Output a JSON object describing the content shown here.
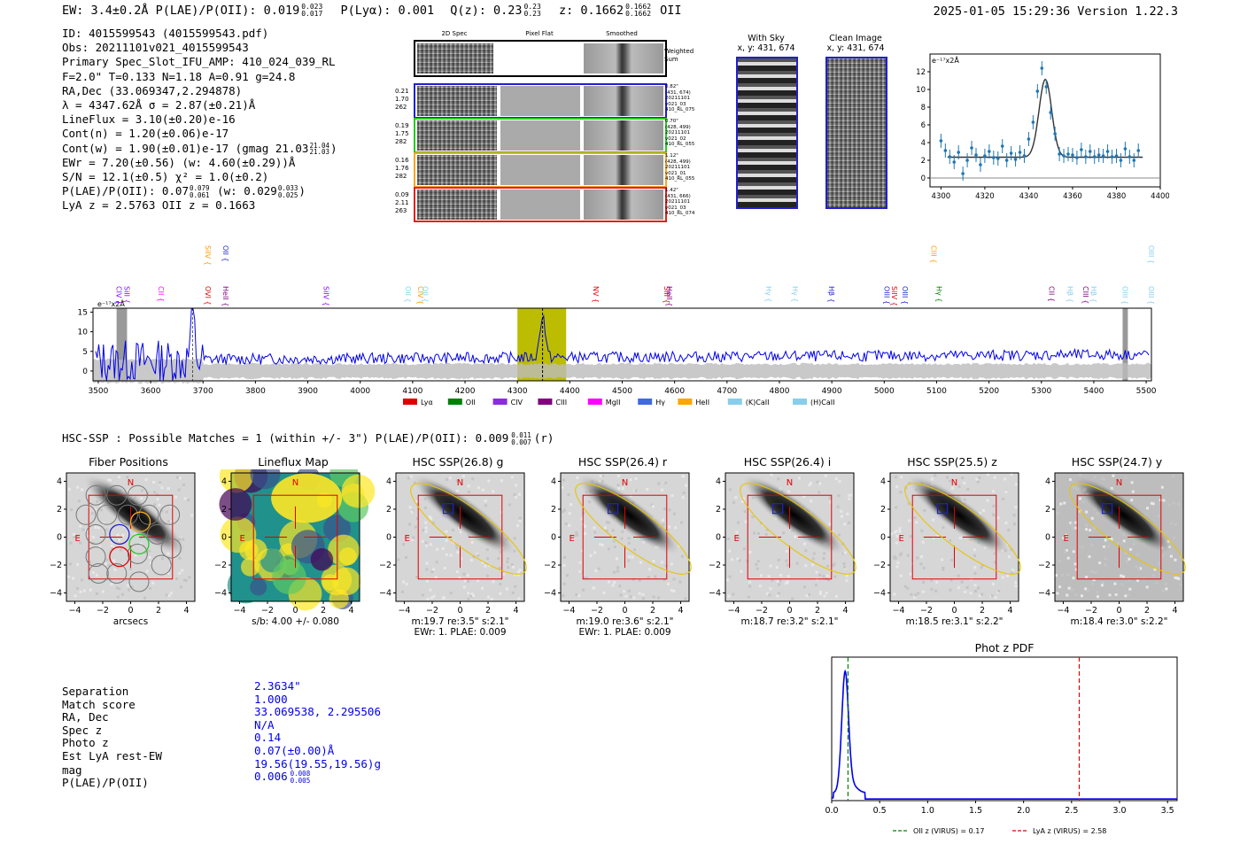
{
  "header": {
    "left": "EW: 3.4±0.2Å  P(LAE)/P(OII): 0.019",
    "plae_sup": "0.023",
    "plae_sub": "0.017",
    "plya": "P(Lyα): 0.001",
    "qz": "Q(z): 0.23",
    "qz_sup": "0.23",
    "qz_sub": "0.23",
    "z": "z: 0.1662",
    "z_sup": "0.1662",
    "z_sub": "0.1662",
    "z_line": "OII",
    "right": "2025-01-05 15:29:36  Version 1.22.3"
  },
  "info": {
    "l1": "ID: 4015599543 (4015599543.pdf)",
    "l2": "Obs: 20211101v021_4015599543",
    "l3": "Primary Spec_Slot_IFU_AMP: 410_024_039_RL",
    "l4": "F=2.0\"  T=0.133  N=1.18  A=0.91  g=24.8",
    "l5": "RA,Dec (33.069347,2.294878)",
    "l6": "λ = 4347.62Å  σ = 2.87(±0.21)Å",
    "l7": "LineFlux = 3.10(±0.20)e-16",
    "l8": "Cont(n) = 1.20(±0.06)e-17",
    "l9": "Cont(w) = 1.90(±0.01)e-17 (gmag 21.03",
    "l9_sup": "21.04",
    "l9_sub": "21.03",
    "l9_end": ")",
    "l10": "EWr = 7.20(±0.56) (w: 4.60(±0.29))Å",
    "l11": "S/N = 12.1(±0.5)  χ² = 1.0(±0.2)",
    "l12": "P(LAE)/P(OII): 0.07",
    "l12_sup": "0.079",
    "l12_sub": "0.061",
    "l12_mid": " (w: 0.029",
    "l12_sup2": "0.033",
    "l12_sub2": "0.025",
    "l12_end": ")",
    "l13": "LyA z = 2.5763  OII z = 0.1663"
  },
  "cutouts": {
    "col1": "2D Spec",
    "col2": "Pixel Flat",
    "col3": "Smoothed",
    "weighted": "Weighted Sum",
    "rows": [
      {
        "l1": "0.21",
        "l2": "1.70",
        "l3": "262",
        "r1": "0.82\"",
        "r2": "(431, 674)",
        "r3": "20211101",
        "r4": "v021_03",
        "r5": "410_RL_075",
        "color": "#1f1fd0"
      },
      {
        "l1": "0.19",
        "l2": "1.75",
        "l3": "282",
        "r1": "0.70\"",
        "r2": "(428, 499)",
        "r3": "20211101",
        "r4": "v021_02",
        "r5": "410_RL_055",
        "color": "#22cc22"
      },
      {
        "l1": "0.16",
        "l2": "1.76",
        "l3": "282",
        "r1": "1.12\"",
        "r2": "(428, 499)",
        "r3": "20211101",
        "r4": "v021_01",
        "r5": "410_RL_055",
        "color": "#f5a623"
      },
      {
        "l1": "0.09",
        "l2": "2.11",
        "l3": "263",
        "r1": "1.42\"",
        "r2": "(431, 666)",
        "r3": "20211101",
        "r4": "v021_03",
        "r5": "410_RL_074",
        "color": "#e0201b"
      }
    ],
    "with_sky": "With Sky",
    "with_sky_xy": "x, y: 431, 674",
    "clean": "Clean Image",
    "clean_xy": "x, y: 431, 674"
  },
  "line_fit": {
    "unit": "e⁻¹⁷x2Å",
    "xlim": [
      4295,
      4400
    ],
    "ylim": [
      -1,
      14
    ],
    "xticks": [
      "4300",
      "4320",
      "4340",
      "4360",
      "4380",
      "4400"
    ],
    "yticks": [
      "0",
      "2",
      "4",
      "6",
      "8",
      "10",
      "12"
    ],
    "points": [
      [
        4300,
        4.2
      ],
      [
        4302,
        3.1
      ],
      [
        4304,
        2.4
      ],
      [
        4306,
        1.8
      ],
      [
        4308,
        2.9
      ],
      [
        4310,
        0.5
      ],
      [
        4312,
        2.0
      ],
      [
        4314,
        3.4
      ],
      [
        4316,
        2.6
      ],
      [
        4318,
        1.5
      ],
      [
        4320,
        2.5
      ],
      [
        4322,
        3.0
      ],
      [
        4324,
        2.3
      ],
      [
        4326,
        2.2
      ],
      [
        4328,
        3.6
      ],
      [
        4330,
        2.0
      ],
      [
        4332,
        2.8
      ],
      [
        4334,
        2.1
      ],
      [
        4336,
        2.9
      ],
      [
        4338,
        2.5
      ],
      [
        4340,
        4.4
      ],
      [
        4342,
        6.3
      ],
      [
        4344,
        9.8
      ],
      [
        4346,
        12.4
      ],
      [
        4348,
        10.3
      ],
      [
        4350,
        7.4
      ],
      [
        4352,
        5.0
      ],
      [
        4354,
        2.7
      ],
      [
        4356,
        2.5
      ],
      [
        4358,
        2.7
      ],
      [
        4360,
        2.6
      ],
      [
        4362,
        2.3
      ],
      [
        4364,
        3.2
      ],
      [
        4366,
        2.4
      ],
      [
        4368,
        3.0
      ],
      [
        4370,
        2.4
      ],
      [
        4372,
        2.6
      ],
      [
        4374,
        2.5
      ],
      [
        4376,
        3.0
      ],
      [
        4378,
        2.4
      ],
      [
        4380,
        2.5
      ],
      [
        4382,
        2.0
      ],
      [
        4384,
        3.3
      ],
      [
        4386,
        2.4
      ],
      [
        4388,
        2.0
      ],
      [
        4390,
        3.1
      ]
    ],
    "fit": {
      "center": 4347.6,
      "sigma": 2.87,
      "amp": 8.8,
      "cont": 2.35
    }
  },
  "spectrum": {
    "unit": "e⁻¹⁷x2Å",
    "xlim": [
      3490,
      5510
    ],
    "ylim": [
      -2.5,
      16
    ],
    "xticks": [
      "3500",
      "3600",
      "3700",
      "3800",
      "3900",
      "4000",
      "4100",
      "4200",
      "4300",
      "4400",
      "4500",
      "4600",
      "4700",
      "4800",
      "4900",
      "5000",
      "5100",
      "5200",
      "5300",
      "5400",
      "5500"
    ],
    "yticks": [
      "0",
      "5",
      "10",
      "15"
    ],
    "highlight": [
      4300,
      4393
    ],
    "line_labels": [
      {
        "w": 3530,
        "t": "CIV",
        "c": "#8b00ff",
        "row": 1
      },
      {
        "w": 3545,
        "t": "SiII",
        "c": "#8b00ff",
        "row": 1
      },
      {
        "w": 3610,
        "t": "CII",
        "c": "#ff00ff",
        "row": 1
      },
      {
        "w": 3700,
        "t": "OVI",
        "c": "#e00000",
        "row": 1
      },
      {
        "w": 3700,
        "t": "SiIV",
        "c": "#ff9900",
        "row": 0
      },
      {
        "w": 3733,
        "t": "OII",
        "c": "#1f1fd0",
        "row": 0
      },
      {
        "w": 3733,
        "t": "HeII",
        "c": "#800080",
        "row": 1
      },
      {
        "w": 3925,
        "t": "SiIV",
        "c": "#8b00ff",
        "row": 1
      },
      {
        "w": 4082,
        "t": "OII",
        "c": "#87ceeb",
        "row": 1
      },
      {
        "w": 4105,
        "t": "CIV",
        "c": "#ff9900",
        "row": 1
      },
      {
        "w": 4115,
        "t": "OII",
        "c": "#87ceeb",
        "row": 1
      },
      {
        "w": 4440,
        "t": "NV",
        "c": "#e00000",
        "row": 1
      },
      {
        "w": 4575,
        "t": "SiII",
        "c": "#e00000",
        "row": 1
      },
      {
        "w": 4580,
        "t": "HeII",
        "c": "#800080",
        "row": 1
      },
      {
        "w": 4770,
        "t": "Hγ",
        "c": "#87ceeb",
        "row": 1
      },
      {
        "w": 4820,
        "t": "Hγ",
        "c": "#87ceeb",
        "row": 1
      },
      {
        "w": 4890,
        "t": "Hβ",
        "c": "#1f1fd0",
        "row": 1
      },
      {
        "w": 4995,
        "t": "OIII",
        "c": "#1f1fd0",
        "row": 1
      },
      {
        "w": 5010,
        "t": "SiIV",
        "c": "#e00000",
        "row": 1
      },
      {
        "w": 5030,
        "t": "OIII",
        "c": "#1f1fd0",
        "row": 1
      },
      {
        "w": 5085,
        "t": "CIII",
        "c": "#ff9900",
        "row": 0
      },
      {
        "w": 5095,
        "t": "Hγ",
        "c": "#008000",
        "row": 1
      },
      {
        "w": 5310,
        "t": "CII",
        "c": "#800080",
        "row": 1
      },
      {
        "w": 5345,
        "t": "Hβ",
        "c": "#87ceeb",
        "row": 1
      },
      {
        "w": 5375,
        "t": "CIII",
        "c": "#800080",
        "row": 1
      },
      {
        "w": 5390,
        "t": "Hβ",
        "c": "#87ceeb",
        "row": 1
      },
      {
        "w": 5450,
        "t": "OIII",
        "c": "#87ceeb",
        "row": 1
      },
      {
        "w": 5500,
        "t": "OIII",
        "c": "#87ceeb",
        "row": 1
      },
      {
        "w": 5500,
        "t": "OIII",
        "c": "#87ceeb",
        "row": 0
      }
    ],
    "legend": [
      {
        "t": "Lyα",
        "c": "#e00000"
      },
      {
        "t": "OII",
        "c": "#008000"
      },
      {
        "t": "CIV",
        "c": "#8b2be2"
      },
      {
        "t": "CIII",
        "c": "#800080"
      },
      {
        "t": "MgII",
        "c": "#ff00ff"
      },
      {
        "t": "Hγ",
        "c": "#4169e1"
      },
      {
        "t": "HeII",
        "c": "#ffa500"
      },
      {
        "t": "(K)CaII",
        "c": "#87ceeb"
      },
      {
        "t": "(H)CaII",
        "c": "#87ceeb"
      }
    ]
  },
  "hsc": {
    "heading": "HSC-SSP : Possible Matches = 1 (within +/- 3\")  P(LAE)/P(OII): 0.009",
    "heading_sup": "0.011",
    "heading_sub": "0.007",
    "heading_end": "(r)",
    "ticks": [
      "−4",
      "−2",
      "0",
      "2",
      "4"
    ],
    "north": "N",
    "east": "E",
    "panels": [
      {
        "title": "Fiber Positions",
        "cap1": "arcsecs",
        "cap2": "",
        "kind": "fibers"
      },
      {
        "title": "Lineflux Map",
        "cap1": "s/b: 4.00 +/- 0.080",
        "cap2": "",
        "kind": "lineflux"
      },
      {
        "title": "HSC SSP(26.8) g",
        "cap1": "m:19.7  re:3.5\"  s:2.1\"",
        "cap2": "EWr: 1. PLAE: 0.009",
        "kind": "hsc"
      },
      {
        "title": "HSC SSP(26.4) r",
        "cap1": "m:19.0  re:3.6\"  s:2.1\"",
        "cap2": "EWr: 1. PLAE: 0.009",
        "kind": "hsc"
      },
      {
        "title": "HSC SSP(26.4) i",
        "cap1": "m:18.7  re:3.2\"  s:2.1\"",
        "cap2": "",
        "kind": "hsc"
      },
      {
        "title": "HSC SSP(25.5) z",
        "cap1": "m:18.5  re:3.1\"  s:2.2\"",
        "cap2": "",
        "kind": "hsc"
      },
      {
        "title": "HSC SSP(24.7) y",
        "cap1": "m:18.4  re:3.0\"  s:2.2\"",
        "cap2": "",
        "kind": "hsc"
      }
    ]
  },
  "match": {
    "rows": [
      {
        "k": "Separation",
        "v": "2.3634\""
      },
      {
        "k": "Match score",
        "v": "1.000"
      },
      {
        "k": "RA, Dec",
        "v": "33.069538, 2.295506"
      },
      {
        "k": "Spec z",
        "v": "N/A"
      },
      {
        "k": "Photo z",
        "v": "0.14"
      },
      {
        "k": "Est LyA rest-EW",
        "v": "0.07(±0.00)Å"
      },
      {
        "k": "mag",
        "v": "19.56(19.55,19.56)g"
      },
      {
        "k": "P(LAE)/P(OII)",
        "v": "0.006"
      }
    ],
    "plae_sup": "0.008",
    "plae_sub": "0.005"
  },
  "photz": {
    "title": "Phot z PDF",
    "xlim": [
      0,
      3.6
    ],
    "xticks": [
      "0.0",
      "0.5",
      "1.0",
      "1.5",
      "2.0",
      "2.5",
      "3.0",
      "3.5"
    ],
    "oii_z": 0.17,
    "lya_z": 2.58,
    "legend_oii": "OII z (VIRUS) = 0.17",
    "legend_lya": "LyA z (VIRUS) = 2.58"
  },
  "colors": {
    "blue": "#0000ee",
    "series": "#1f77b4",
    "red": "#e00000",
    "olive": "#bcbd00",
    "gold": "#e8c400"
  }
}
